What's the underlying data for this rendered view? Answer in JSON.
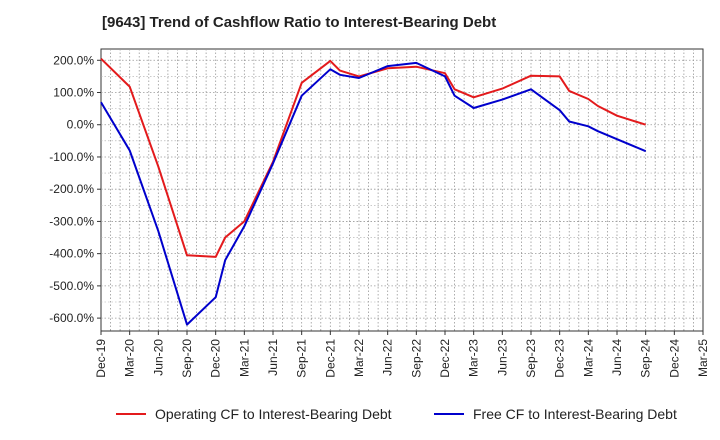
{
  "chart_data": {
    "type": "line",
    "title": "[9643]  Trend of Cashflow Ratio to Interest-Bearing Debt",
    "xlabel": "",
    "ylabel": "",
    "x_ticks": [
      "Dec-19",
      "Mar-20",
      "Jun-20",
      "Sep-20",
      "Dec-20",
      "Mar-21",
      "Jun-21",
      "Sep-21",
      "Dec-21",
      "Mar-22",
      "Jun-22",
      "Sep-22",
      "Dec-22",
      "Mar-23",
      "Jun-23",
      "Sep-23",
      "Dec-23",
      "Mar-24",
      "Jun-24",
      "Sep-24",
      "Dec-24",
      "Mar-25"
    ],
    "y_ticks": [
      "200.0%",
      "100.0%",
      "0.0%",
      "-100.0%",
      "-200.0%",
      "-300.0%",
      "-400.0%",
      "-500.0%",
      "-600.0%"
    ],
    "y_tick_values": [
      200,
      100,
      0,
      -100,
      -200,
      -300,
      -400,
      -500,
      -600
    ],
    "ylim": [
      -640,
      235
    ],
    "grid": true,
    "legend_position": "bottom",
    "series": [
      {
        "name": "Operating CF to Interest-Bearing Debt",
        "color": "#e31a1c",
        "points": [
          [
            "Dec-19",
            205
          ],
          [
            "Mar-20",
            118
          ],
          [
            "Jun-20",
            -130
          ],
          [
            "Sep-20",
            -405
          ],
          [
            "Dec-20",
            -410
          ],
          [
            "Dec-20+1",
            -350
          ],
          [
            "Mar-21",
            -300
          ],
          [
            "Jun-21",
            -115
          ],
          [
            "Sep-21",
            130
          ],
          [
            "Dec-21",
            198
          ],
          [
            "Dec-21+1",
            168
          ],
          [
            "Mar-22",
            150
          ],
          [
            "Jun-22",
            175
          ],
          [
            "Sep-22",
            180
          ],
          [
            "Dec-22",
            160
          ],
          [
            "Dec-22+1",
            110
          ],
          [
            "Mar-23",
            85
          ],
          [
            "Jun-23",
            112
          ],
          [
            "Sep-23",
            152
          ],
          [
            "Dec-23",
            150
          ],
          [
            "Dec-23+1",
            105
          ],
          [
            "Mar-24",
            80
          ],
          [
            "Mar-24+1",
            58
          ],
          [
            "Jun-24",
            28
          ],
          [
            "Sep-24",
            0
          ]
        ]
      },
      {
        "name": "Free CF to Interest-Bearing Debt",
        "color": "#0000cc",
        "points": [
          [
            "Dec-19",
            70
          ],
          [
            "Mar-20",
            -80
          ],
          [
            "Jun-20",
            -330
          ],
          [
            "Sep-20",
            -620
          ],
          [
            "Dec-20",
            -535
          ],
          [
            "Dec-20+1",
            -420
          ],
          [
            "Mar-21",
            -315
          ],
          [
            "Jun-21",
            -120
          ],
          [
            "Sep-21",
            90
          ],
          [
            "Dec-21",
            172
          ],
          [
            "Dec-21+1",
            155
          ],
          [
            "Mar-22",
            145
          ],
          [
            "Jun-22",
            182
          ],
          [
            "Sep-22",
            192
          ],
          [
            "Dec-22",
            150
          ],
          [
            "Dec-22+1",
            90
          ],
          [
            "Mar-23",
            52
          ],
          [
            "Jun-23",
            78
          ],
          [
            "Sep-23",
            110
          ],
          [
            "Dec-23",
            45
          ],
          [
            "Dec-23+1",
            10
          ],
          [
            "Mar-24",
            -5
          ],
          [
            "Mar-24+1",
            -20
          ],
          [
            "Jun-24",
            -45
          ],
          [
            "Sep-24",
            -82
          ]
        ]
      }
    ]
  }
}
